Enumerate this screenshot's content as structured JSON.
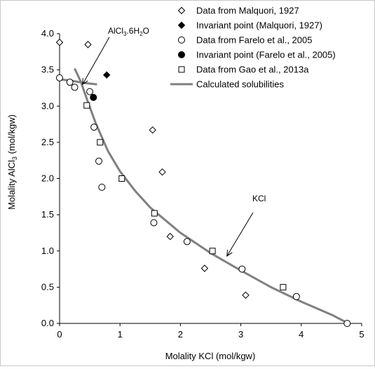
{
  "chart_data": {
    "type": "scatter",
    "xlabel": "Molality KCl (mol/kgw)",
    "ylabel": "Molality AlCl3 (mol/kgw)",
    "xlim": [
      0,
      5
    ],
    "ylim": [
      0,
      4.0
    ],
    "x_ticks": [
      "0",
      "1",
      "2",
      "3",
      "4",
      "5"
    ],
    "y_ticks": [
      "0.0",
      "0.5",
      "1.0",
      "1.5",
      "2.0",
      "2.5",
      "3.0",
      "3.5",
      "4.0"
    ],
    "grid": false,
    "legend_position": "top-right",
    "series": [
      {
        "name": "Data from Malquori, 1927",
        "marker": "diamond-open",
        "points": [
          [
            0.0,
            3.88
          ],
          [
            0.47,
            3.85
          ],
          [
            1.54,
            2.67
          ],
          [
            1.7,
            2.09
          ],
          [
            1.83,
            1.2
          ],
          [
            2.4,
            0.76
          ],
          [
            3.08,
            0.39
          ]
        ]
      },
      {
        "name": "Invariant point (Malquori, 1927)",
        "marker": "diamond-filled",
        "points": [
          [
            0.78,
            3.43
          ]
        ]
      },
      {
        "name": "Data from Farelo et al., 2005",
        "marker": "circle-open",
        "points": [
          [
            0.0,
            3.39
          ],
          [
            0.17,
            3.33
          ],
          [
            0.25,
            3.26
          ],
          [
            0.5,
            3.2
          ],
          [
            0.57,
            2.71
          ],
          [
            0.65,
            2.24
          ],
          [
            0.7,
            1.88
          ],
          [
            1.56,
            1.39
          ],
          [
            2.11,
            1.13
          ],
          [
            3.02,
            0.75
          ],
          [
            3.92,
            0.37
          ],
          [
            4.76,
            0.0
          ]
        ]
      },
      {
        "name": "Invariant point (Farelo et al., 2005)",
        "marker": "circle-filled",
        "points": [
          [
            0.56,
            3.12
          ]
        ]
      },
      {
        "name": "Data from Gao et al., 2013a",
        "marker": "square-open",
        "points": [
          [
            0.45,
            3.01
          ],
          [
            0.67,
            2.5
          ],
          [
            1.03,
            2.0
          ],
          [
            1.57,
            1.52
          ],
          [
            2.53,
            1.0
          ],
          [
            3.7,
            0.5
          ]
        ]
      },
      {
        "name": "Calculated solubilities",
        "marker": "line",
        "color": "#808080",
        "lines": [
          [
            [
              0.0,
              3.37
            ],
            [
              0.2,
              3.35
            ],
            [
              0.4,
              3.32
            ],
            [
              0.62,
              3.3
            ]
          ],
          [
            [
              0.25,
              3.52
            ],
            [
              0.35,
              3.34
            ],
            [
              0.45,
              3.1
            ],
            [
              0.6,
              2.76
            ],
            [
              0.8,
              2.38
            ],
            [
              1.0,
              2.1
            ],
            [
              1.25,
              1.83
            ],
            [
              1.5,
              1.6
            ],
            [
              2.0,
              1.25
            ],
            [
              2.5,
              0.97
            ],
            [
              3.0,
              0.73
            ],
            [
              3.5,
              0.5
            ],
            [
              4.0,
              0.3
            ],
            [
              4.5,
              0.12
            ],
            [
              4.78,
              0.0
            ]
          ]
        ]
      }
    ],
    "annotations": [
      {
        "id": "alcl3",
        "text": "AlCl3.6H2O",
        "arrow_target": [
          0.38,
          3.3
        ]
      },
      {
        "id": "kcl",
        "text": "KCl",
        "arrow_target": [
          2.77,
          0.93
        ]
      }
    ]
  },
  "labels": {
    "ylabel_main": "Molality AlCl",
    "ylabel_sub": "3",
    "ylabel_tail": " (mol/kgw)",
    "alcl3_a": "AlCl",
    "alcl3_sub1": "3",
    "alcl3_b": ".6H",
    "alcl3_sub2": "2",
    "alcl3_c": "O"
  }
}
